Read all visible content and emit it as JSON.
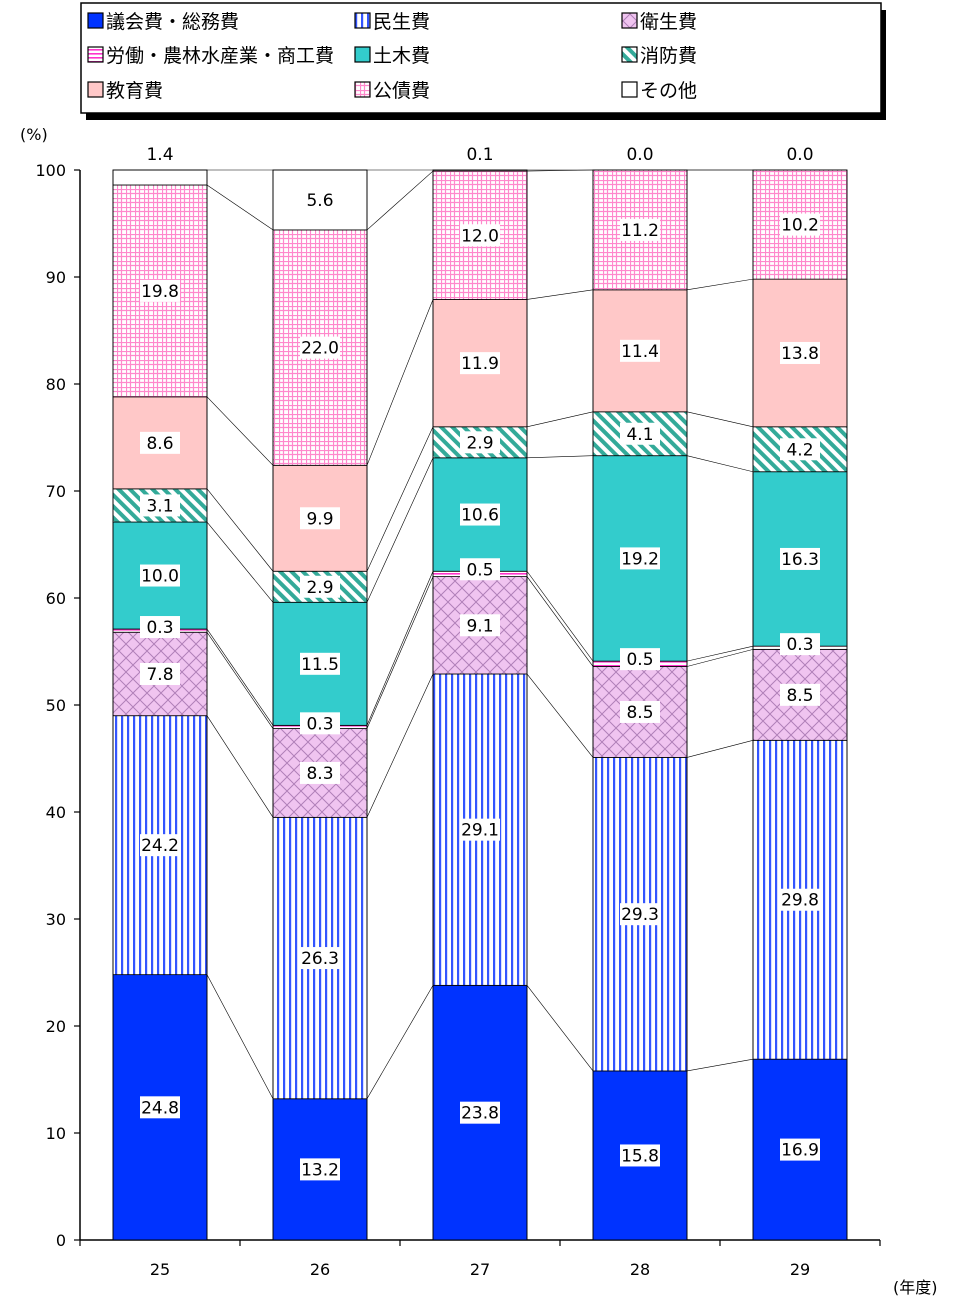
{
  "chart_data": {
    "type": "bar",
    "stacked": true,
    "ylabel": "(%)",
    "xlabel": "(年度)",
    "ylim": [
      0,
      100
    ],
    "yticks": [
      0,
      10,
      20,
      30,
      40,
      50,
      60,
      70,
      80,
      90,
      100
    ],
    "categories": [
      "25",
      "26",
      "27",
      "28",
      "29"
    ],
    "legend_position": "top",
    "series": [
      {
        "name": "議会費・総務費",
        "color": "#0033FF",
        "pattern": "solid",
        "values": [
          24.8,
          13.2,
          23.8,
          15.8,
          16.9
        ]
      },
      {
        "name": "民生費",
        "color": "#3355FF",
        "pattern": "vertical-stripes",
        "values": [
          24.2,
          26.3,
          29.1,
          29.3,
          29.8
        ]
      },
      {
        "name": "衛生費",
        "color": "#E8AEE8",
        "pattern": "diagonal-cross",
        "values": [
          7.8,
          8.3,
          9.1,
          8.5,
          8.5
        ]
      },
      {
        "name": "労働・農林水産業・商工費",
        "color": "#FF33CC",
        "pattern": "horizontal-stripes",
        "values": [
          0.3,
          0.3,
          0.5,
          0.5,
          0.3
        ]
      },
      {
        "name": "土木費",
        "color": "#33CCCC",
        "pattern": "solid",
        "values": [
          10.0,
          11.5,
          10.6,
          19.2,
          16.3
        ]
      },
      {
        "name": "消防費",
        "color": "#33AA99",
        "pattern": "diagonal-stripes",
        "values": [
          3.1,
          2.9,
          2.9,
          4.1,
          4.2
        ]
      },
      {
        "name": "教育費",
        "color": "#FFC8C8",
        "pattern": "solid",
        "values": [
          8.6,
          9.9,
          11.9,
          11.4,
          13.8
        ]
      },
      {
        "name": "公債費",
        "color": "#FF88CC",
        "pattern": "grid",
        "values": [
          19.8,
          22.0,
          12.0,
          11.2,
          10.2
        ]
      },
      {
        "name": "その他",
        "color": "#FFFFFF",
        "pattern": "solid",
        "values": [
          1.4,
          5.6,
          0.1,
          0.0,
          0.0
        ]
      }
    ]
  }
}
